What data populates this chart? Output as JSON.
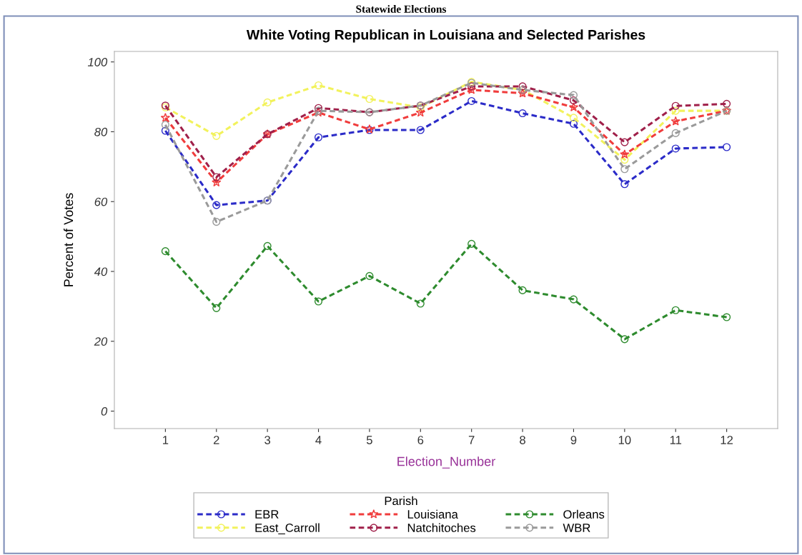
{
  "chart_data": {
    "type": "line",
    "title": "White Voting Republican in Louisiana and Selected Parishes",
    "annotations": [
      "Statewide Elections"
    ],
    "xlabel": "Election_Number",
    "ylabel": "Percent of Votes",
    "legend_title": "Parish",
    "x": [
      1,
      2,
      3,
      4,
      5,
      6,
      7,
      8,
      9,
      10,
      11,
      12
    ],
    "xlim": [
      0,
      13
    ],
    "xticks": [
      1,
      2,
      3,
      4,
      5,
      6,
      7,
      8,
      9,
      10,
      11,
      12
    ],
    "ylim": [
      -5,
      103
    ],
    "yticks": [
      0,
      20,
      40,
      60,
      80,
      100
    ],
    "grid": false,
    "legend": "bottom",
    "line_style": "dashed",
    "marker": "circle",
    "series": [
      {
        "name": "EBR",
        "color": "#2b2bc8",
        "values": [
          80.3,
          59,
          60.3,
          78.4,
          80.5,
          80.5,
          88.8,
          85.3,
          82.3,
          65,
          75.2,
          75.6
        ]
      },
      {
        "name": "East_Carroll",
        "color": "#f2f25c",
        "values": [
          87,
          78.8,
          88.4,
          93.3,
          89.4,
          87,
          94.3,
          92,
          84,
          72,
          86,
          86
        ]
      },
      {
        "name": "Louisiana",
        "color": "#f03c3c",
        "marker": "star",
        "values": [
          84,
          65.5,
          79.3,
          85.5,
          80.7,
          85.5,
          92,
          91,
          87,
          73.5,
          83,
          86
        ]
      },
      {
        "name": "Natchitoches",
        "color": "#a0204a",
        "values": [
          87.5,
          67,
          79.3,
          86.8,
          85.6,
          87.5,
          93,
          93,
          89,
          77,
          87.4,
          88
        ]
      },
      {
        "name": "Orleans",
        "color": "#2e8b2e",
        "values": [
          45.8,
          29.5,
          47.3,
          31.4,
          38.7,
          30.8,
          47.9,
          34.6,
          32,
          20.6,
          28.9,
          26.9
        ]
      },
      {
        "name": "WBR",
        "color": "#9a9a9a",
        "values": [
          82,
          54.2,
          60.3,
          86,
          85.6,
          87.5,
          94,
          92,
          90.5,
          69.3,
          79.6,
          86
        ]
      }
    ]
  }
}
